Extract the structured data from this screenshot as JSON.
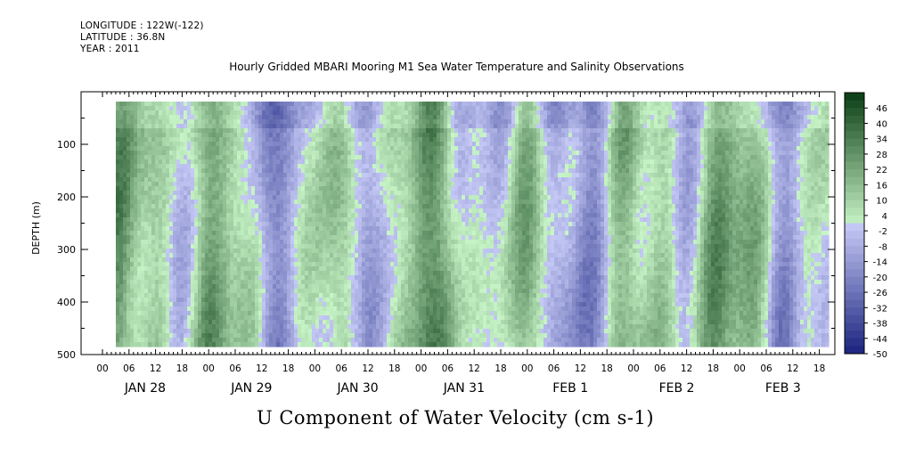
{
  "header": {
    "longitude": "LONGITUDE : 122W(-122)",
    "latitude": "LATITUDE : 36.8N",
    "year": "YEAR : 2011"
  },
  "chart_data": {
    "type": "heatmap",
    "title": "Hourly Gridded MBARI Mooring M1 Sea Water Temperature and Salinity Observations",
    "xlabel": "U Component of Water Velocity (cm s-1)",
    "ylabel": "DEPTH (m)",
    "ylim": [
      500,
      0
    ],
    "yticks": [
      100,
      200,
      300,
      400,
      500
    ],
    "ytick_labels": [
      "100",
      "200",
      "300",
      "400",
      "500"
    ],
    "hour_ticks": [
      "00",
      "06",
      "12",
      "18",
      "00",
      "06",
      "12",
      "18",
      "00",
      "06",
      "12",
      "18",
      "00",
      "06",
      "12",
      "18",
      "00",
      "06",
      "12",
      "18",
      "00",
      "06",
      "12",
      "18",
      "00",
      "06",
      "12",
      "18"
    ],
    "day_labels": [
      "JAN 28",
      "JAN 29",
      "JAN 30",
      "JAN 31",
      "FEB  1",
      "FEB  2",
      "FEB  3"
    ],
    "colorbar": {
      "levels": [
        "46",
        "40",
        "34",
        "28",
        "22",
        "16",
        "10",
        "4",
        "-2",
        "-8",
        "-14",
        "-20",
        "-26",
        "-32",
        "-38",
        "-44",
        "-50"
      ],
      "range": [
        -50,
        52
      ],
      "step": 3
    },
    "colors": {
      "neg_dark": "#1a237e",
      "neg_light": "#c5c9f5",
      "pos_light": "#c8f5c8",
      "pos_dark": "#0b3d14"
    }
  }
}
